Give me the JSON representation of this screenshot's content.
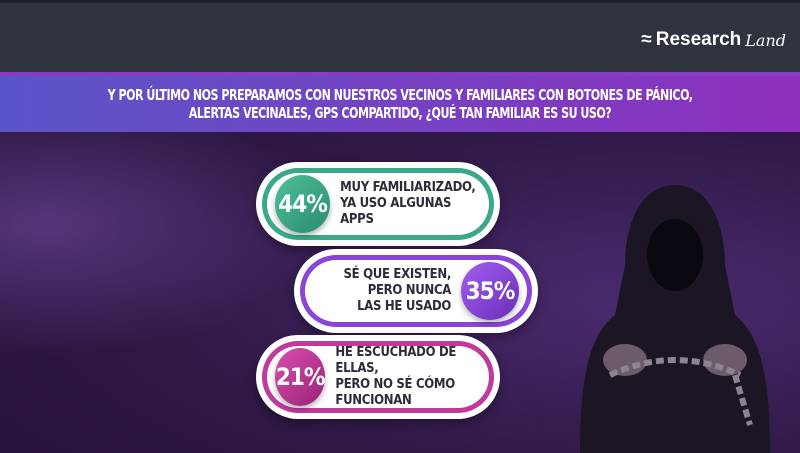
{
  "brand": {
    "name": "Research",
    "suffix": "Land"
  },
  "question": {
    "line1": "Y POR ÚLTIMO NOS PREPARAMOS CON NUESTROS VECINOS Y FAMILIARES CON BOTONES DE PÁNICO,",
    "line2": "ALERTAS VECINALES, GPS COMPARTIDO, ¿QUÉ TAN FAMILIAR ES SU USO?"
  },
  "answers": [
    {
      "percent": "44%",
      "line1": "MUY FAMILIARIZADO,",
      "line2": "YA USO ALGUNAS APPS",
      "color": "#3aa98a"
    },
    {
      "percent": "35%",
      "line1": "SÉ QUE EXISTEN,",
      "line2": "PERO NUNCA",
      "line3": "LAS HE USADO",
      "color": "#8a44d8"
    },
    {
      "percent": "21%",
      "line1": "HE ESCUCHADO DE ELLAS,",
      "line2": "PERO NO SÉ CÓMO",
      "line3": "FUNCIONAN",
      "color": "#c2399c"
    }
  ]
}
